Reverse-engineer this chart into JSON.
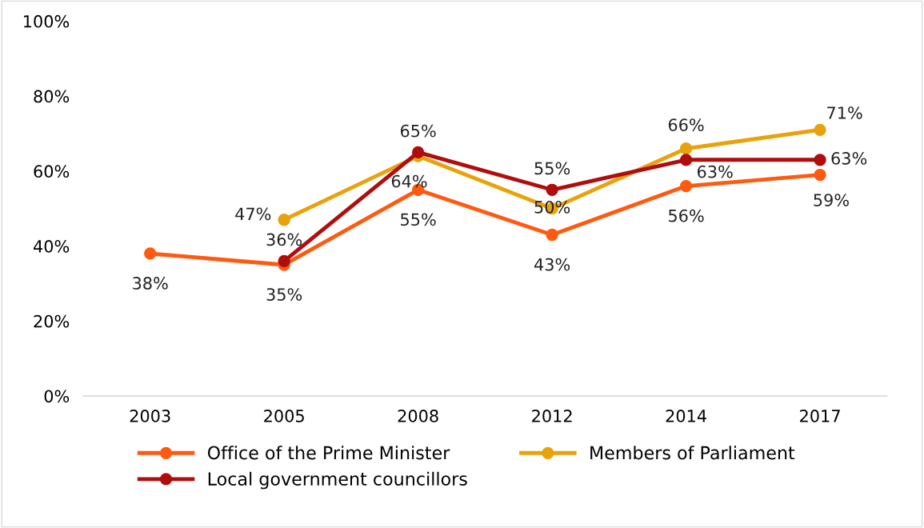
{
  "chart_data": {
    "type": "line",
    "categories": [
      "2003",
      "2005",
      "2008",
      "2012",
      "2014",
      "2017"
    ],
    "series": [
      {
        "name": "Office of the Prime Minister",
        "color": "#ff5a10",
        "values": [
          38,
          35,
          55,
          43,
          56,
          59
        ],
        "value_labels": [
          "38%",
          "35%",
          "55%",
          "43%",
          "56%",
          "59%"
        ]
      },
      {
        "name": "Members of Parliament",
        "color": "#e8a20c",
        "values": [
          null,
          47,
          64,
          50,
          66,
          71
        ],
        "value_labels": [
          null,
          "47%",
          "64%",
          "50%",
          "66%",
          "71%"
        ]
      },
      {
        "name": "Local government councillors",
        "color": "#b00d0d",
        "values": [
          null,
          36,
          65,
          55,
          63,
          63
        ],
        "value_labels": [
          null,
          "36%",
          "65%",
          "55%",
          "63%",
          "63%"
        ]
      }
    ],
    "ylim": [
      0,
      100
    ],
    "yticks": [
      {
        "value": 0,
        "label": "0%"
      },
      {
        "value": 20,
        "label": "20%"
      },
      {
        "value": 40,
        "label": "40%"
      },
      {
        "value": 60,
        "label": "60%"
      },
      {
        "value": 80,
        "label": "80%"
      },
      {
        "value": 100,
        "label": "100%"
      }
    ],
    "grid": false,
    "legend": "bottom",
    "marker": "circle",
    "line_style": "solid"
  }
}
